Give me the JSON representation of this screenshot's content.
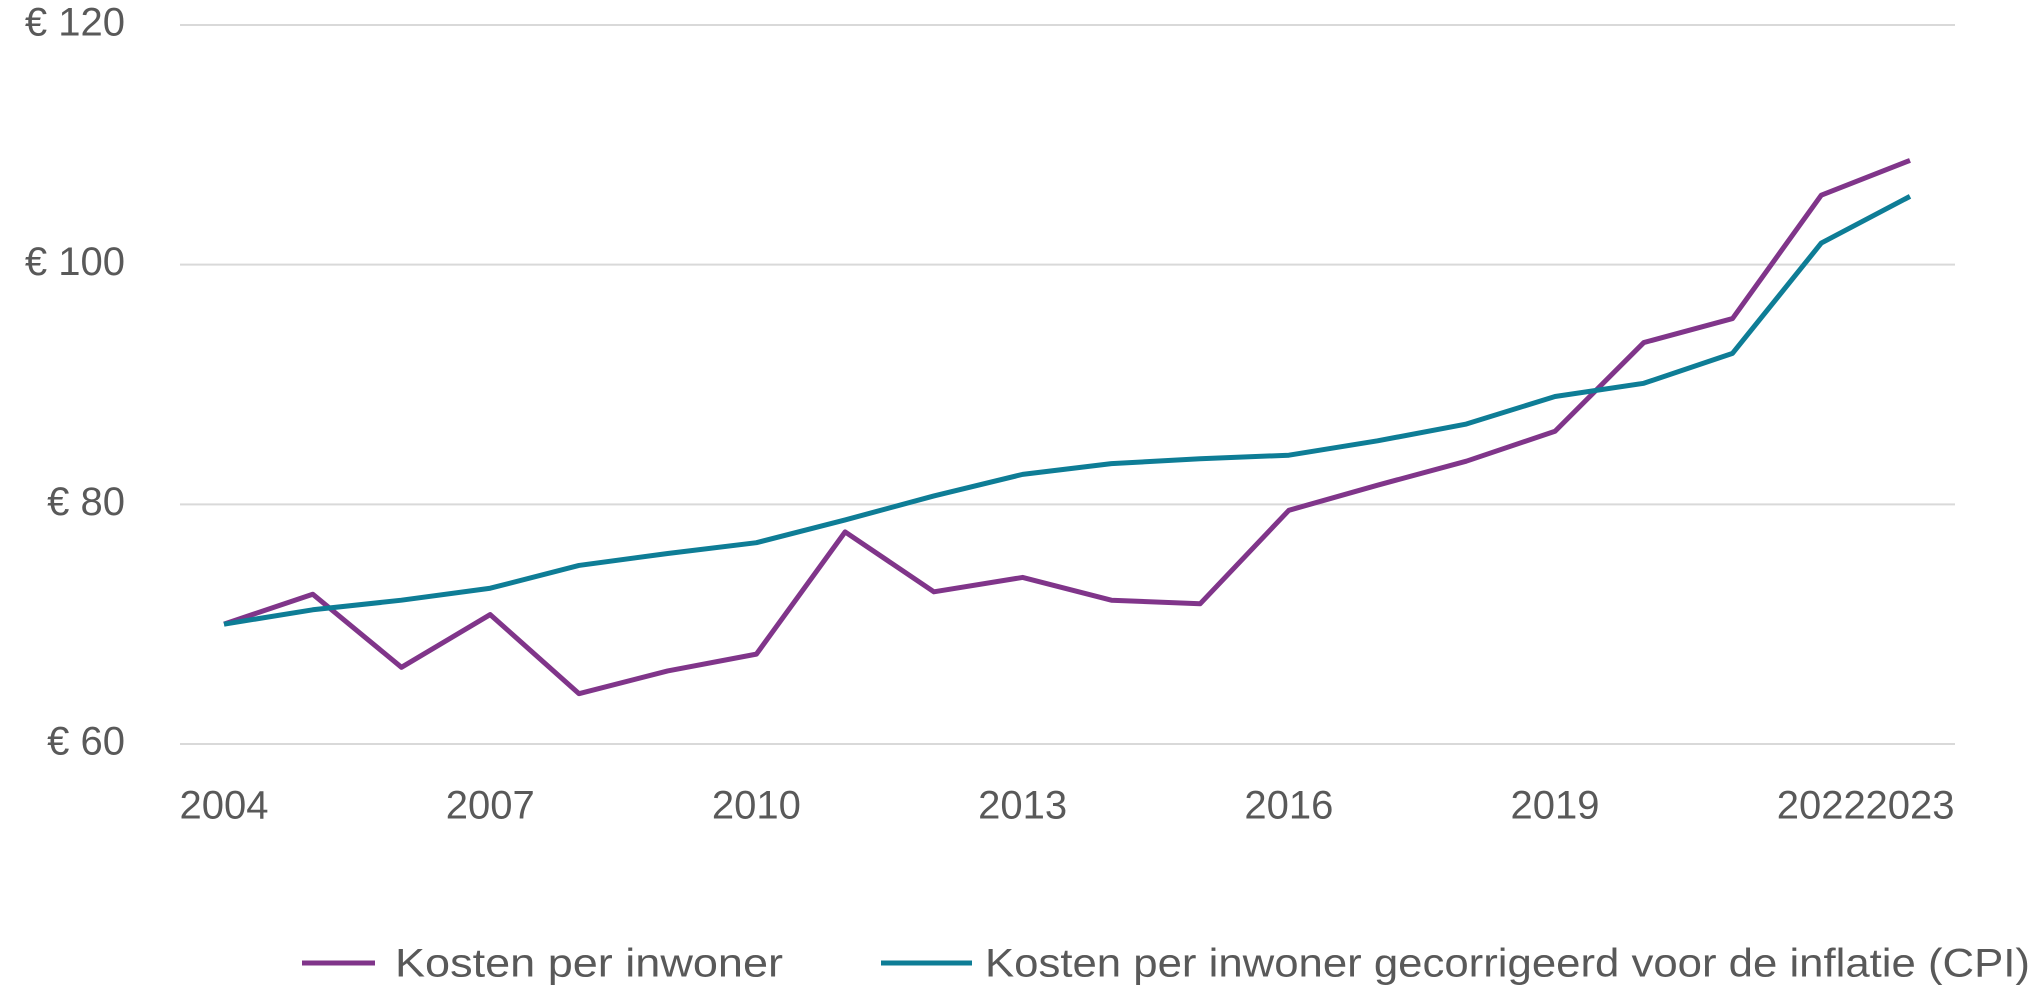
{
  "chart_data": {
    "type": "line",
    "x": [
      2004,
      2005,
      2006,
      2007,
      2008,
      2009,
      2010,
      2011,
      2012,
      2013,
      2014,
      2015,
      2016,
      2017,
      2018,
      2019,
      2020,
      2021,
      2022,
      2023
    ],
    "series": [
      {
        "name": "Kosten per inwoner",
        "color": "#80358a",
        "values": [
          70.0,
          72.5,
          66.4,
          70.8,
          64.2,
          66.1,
          67.5,
          77.7,
          72.7,
          73.9,
          72.0,
          71.7,
          79.5,
          81.6,
          83.6,
          86.1,
          93.5,
          95.5,
          105.8,
          108.7
        ]
      },
      {
        "name": "Kosten per inwoner gecorrigeerd voor de inflatie (CPI)",
        "color": "#0e7d96",
        "values": [
          70.0,
          71.2,
          72.0,
          73.0,
          74.9,
          75.9,
          76.8,
          78.7,
          80.7,
          82.5,
          83.4,
          83.8,
          84.1,
          85.3,
          86.7,
          89.0,
          90.1,
          92.6,
          101.8,
          105.7
        ]
      }
    ],
    "xlim": [
      2004,
      2023
    ],
    "xticks": [
      2004,
      2007,
      2010,
      2013,
      2016,
      2019,
      2022,
      2023
    ],
    "ylim": [
      60,
      120
    ],
    "yticks": [
      {
        "value": 60,
        "label": "€ 60"
      },
      {
        "value": 80,
        "label": "€ 80"
      },
      {
        "value": 100,
        "label": "€ 100"
      },
      {
        "value": 120,
        "label": "€ 120"
      }
    ],
    "grid": true,
    "legend": "bottom"
  }
}
